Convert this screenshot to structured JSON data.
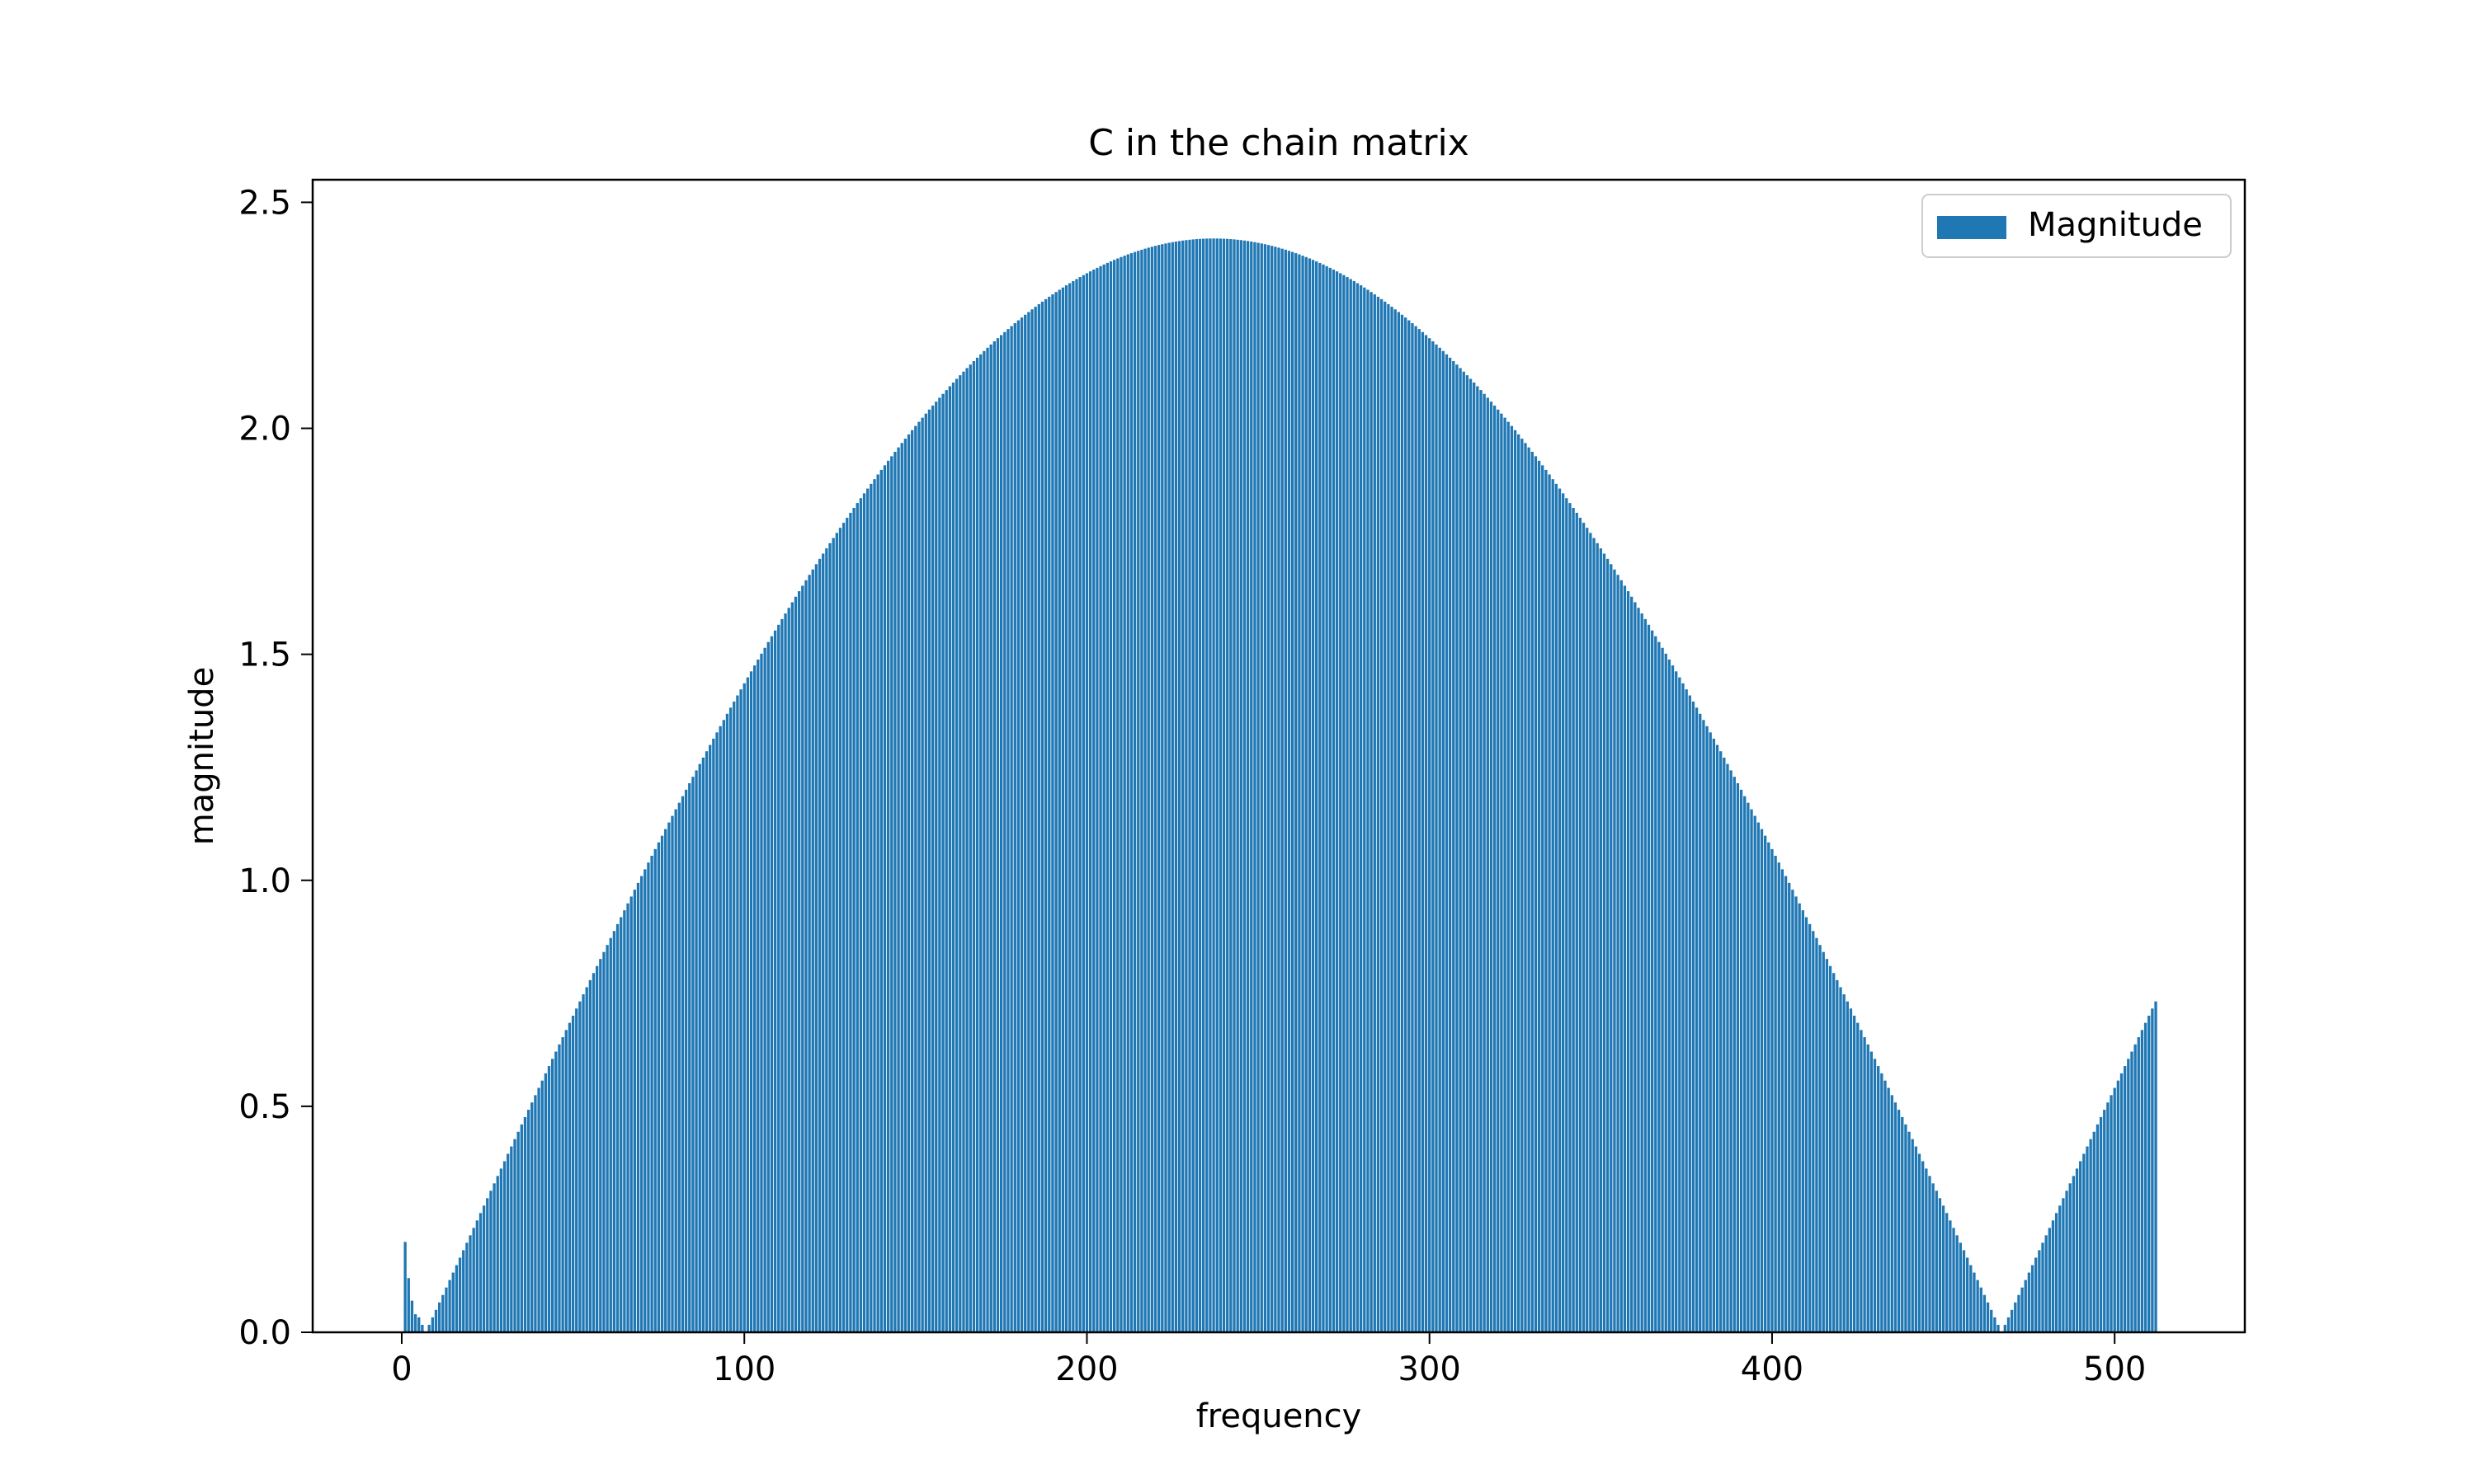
{
  "chart_data": {
    "type": "bar",
    "title": "C in the chain matrix",
    "xlabel": "frequency",
    "ylabel": "magnitude",
    "xlim": [
      -26,
      538
    ],
    "ylim": [
      0.0,
      2.55
    ],
    "xticks": [
      0,
      100,
      200,
      300,
      400,
      500
    ],
    "yticks": [
      0.0,
      0.5,
      1.0,
      1.5,
      2.0,
      2.5
    ],
    "xtick_labels": [
      "0",
      "100",
      "200",
      "300",
      "400",
      "500"
    ],
    "ytick_labels": [
      "0.0",
      "0.5",
      "1.0",
      "1.5",
      "2.0",
      "2.5"
    ],
    "legend": {
      "position": "upper right",
      "entries": [
        "Magnitude"
      ]
    },
    "grid": false,
    "bar_color": "#1f77b4",
    "series": [
      {
        "name": "Magnitude",
        "x_start": 1,
        "x_step": 1,
        "count": 512,
        "values_low_freq": {
          "x": [
            1,
            2,
            3,
            4
          ],
          "values": [
            0.2,
            0.12,
            0.07,
            0.04
          ]
        },
        "curve": {
          "form": "abs_sine",
          "amplitude": 2.42,
          "zero_at": 7,
          "half_period": 460
        }
      }
    ]
  }
}
